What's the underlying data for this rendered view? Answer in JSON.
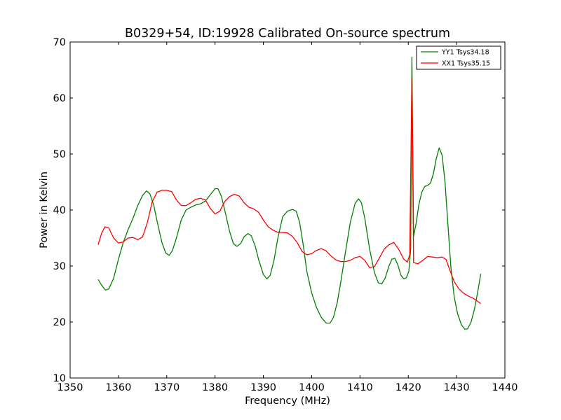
{
  "chart_data": {
    "type": "line",
    "title": "B0329+54, ID:19928 Calibrated On-source spectrum",
    "xlabel": "Frequency (MHz)",
    "ylabel": "Power in Kelvin",
    "xlim": [
      1350,
      1440
    ],
    "ylim": [
      10,
      70
    ],
    "xticks": [
      1350,
      1360,
      1370,
      1380,
      1390,
      1400,
      1410,
      1420,
      1430,
      1440
    ],
    "yticks": [
      10,
      20,
      30,
      40,
      50,
      60,
      70
    ],
    "grid": false,
    "legend_position": "top-right",
    "series": [
      {
        "name": "YY1 Tsys34.18",
        "color": "#008000",
        "points": [
          [
            1355.8,
            27.6
          ],
          [
            1356.5,
            26.6
          ],
          [
            1357.3,
            25.7
          ],
          [
            1358.0,
            25.9
          ],
          [
            1359.0,
            27.8
          ],
          [
            1360.0,
            31.2
          ],
          [
            1361.0,
            34.2
          ],
          [
            1362.0,
            36.5
          ],
          [
            1363.0,
            38.5
          ],
          [
            1364.0,
            40.8
          ],
          [
            1365.0,
            42.6
          ],
          [
            1365.8,
            43.4
          ],
          [
            1366.5,
            42.9
          ],
          [
            1367.3,
            40.9
          ],
          [
            1368.0,
            38.0
          ],
          [
            1369.0,
            34.2
          ],
          [
            1369.8,
            32.3
          ],
          [
            1370.5,
            31.9
          ],
          [
            1371.2,
            32.8
          ],
          [
            1372.0,
            35.0
          ],
          [
            1373.0,
            38.2
          ],
          [
            1374.0,
            40.0
          ],
          [
            1375.0,
            40.5
          ],
          [
            1376.0,
            40.9
          ],
          [
            1377.0,
            41.1
          ],
          [
            1378.0,
            41.6
          ],
          [
            1379.0,
            42.7
          ],
          [
            1380.0,
            43.8
          ],
          [
            1380.6,
            43.8
          ],
          [
            1381.3,
            42.5
          ],
          [
            1382.0,
            40.0
          ],
          [
            1383.0,
            36.2
          ],
          [
            1383.8,
            34.0
          ],
          [
            1384.5,
            33.5
          ],
          [
            1385.3,
            34.0
          ],
          [
            1386.0,
            35.2
          ],
          [
            1386.8,
            35.8
          ],
          [
            1387.5,
            35.4
          ],
          [
            1388.3,
            33.6
          ],
          [
            1389.0,
            31.2
          ],
          [
            1390.0,
            28.5
          ],
          [
            1390.7,
            27.7
          ],
          [
            1391.4,
            28.3
          ],
          [
            1392.2,
            31.0
          ],
          [
            1393.0,
            35.0
          ],
          [
            1394.0,
            38.8
          ],
          [
            1395.0,
            39.8
          ],
          [
            1396.0,
            40.1
          ],
          [
            1396.8,
            39.8
          ],
          [
            1397.5,
            37.8
          ],
          [
            1398.3,
            33.5
          ],
          [
            1399.0,
            29.0
          ],
          [
            1400.0,
            25.2
          ],
          [
            1401.0,
            22.6
          ],
          [
            1402.0,
            20.8
          ],
          [
            1403.0,
            19.8
          ],
          [
            1403.8,
            19.8
          ],
          [
            1404.5,
            20.8
          ],
          [
            1405.3,
            23.5
          ],
          [
            1406.0,
            27.0
          ],
          [
            1407.0,
            32.5
          ],
          [
            1408.0,
            37.8
          ],
          [
            1409.0,
            41.2
          ],
          [
            1409.7,
            42.0
          ],
          [
            1410.3,
            41.3
          ],
          [
            1411.0,
            38.5
          ],
          [
            1412.0,
            33.0
          ],
          [
            1413.0,
            28.8
          ],
          [
            1413.8,
            27.0
          ],
          [
            1414.5,
            26.8
          ],
          [
            1415.2,
            27.8
          ],
          [
            1416.0,
            30.0
          ],
          [
            1416.6,
            31.2
          ],
          [
            1417.2,
            31.4
          ],
          [
            1417.8,
            30.3
          ],
          [
            1418.5,
            28.3
          ],
          [
            1419.1,
            27.7
          ],
          [
            1419.6,
            27.9
          ],
          [
            1420.1,
            29.0
          ],
          [
            1420.5,
            33.0
          ],
          [
            1420.75,
            67.3
          ],
          [
            1421.1,
            35.3
          ],
          [
            1421.6,
            37.5
          ],
          [
            1422.2,
            41.0
          ],
          [
            1422.8,
            43.2
          ],
          [
            1423.4,
            44.2
          ],
          [
            1424.0,
            44.4
          ],
          [
            1424.6,
            44.8
          ],
          [
            1425.2,
            46.5
          ],
          [
            1425.8,
            49.2
          ],
          [
            1426.4,
            51.1
          ],
          [
            1427.0,
            49.8
          ],
          [
            1427.6,
            45.0
          ],
          [
            1428.2,
            37.5
          ],
          [
            1428.8,
            30.0
          ],
          [
            1429.5,
            24.5
          ],
          [
            1430.2,
            21.5
          ],
          [
            1431.0,
            19.5
          ],
          [
            1431.7,
            18.7
          ],
          [
            1432.3,
            18.8
          ],
          [
            1433.0,
            20.0
          ],
          [
            1433.7,
            22.3
          ],
          [
            1434.4,
            25.5
          ],
          [
            1435.0,
            28.6
          ]
        ]
      },
      {
        "name": "XX1 Tsys35.15",
        "color": "#ff0000",
        "points": [
          [
            1355.8,
            33.8
          ],
          [
            1356.5,
            35.8
          ],
          [
            1357.2,
            37.0
          ],
          [
            1358.0,
            36.8
          ],
          [
            1359.0,
            35.0
          ],
          [
            1360.0,
            34.1
          ],
          [
            1361.0,
            34.3
          ],
          [
            1362.0,
            35.0
          ],
          [
            1363.0,
            35.1
          ],
          [
            1364.0,
            34.7
          ],
          [
            1365.0,
            35.2
          ],
          [
            1366.0,
            37.8
          ],
          [
            1367.0,
            41.5
          ],
          [
            1368.0,
            43.2
          ],
          [
            1369.0,
            43.5
          ],
          [
            1370.0,
            43.5
          ],
          [
            1371.0,
            43.3
          ],
          [
            1372.0,
            41.8
          ],
          [
            1373.0,
            40.8
          ],
          [
            1374.0,
            40.8
          ],
          [
            1375.0,
            41.3
          ],
          [
            1376.0,
            41.9
          ],
          [
            1377.0,
            42.1
          ],
          [
            1378.0,
            41.8
          ],
          [
            1379.0,
            40.3
          ],
          [
            1380.0,
            39.3
          ],
          [
            1381.0,
            39.8
          ],
          [
            1382.0,
            41.5
          ],
          [
            1383.0,
            42.4
          ],
          [
            1384.0,
            42.8
          ],
          [
            1385.0,
            42.5
          ],
          [
            1386.0,
            41.3
          ],
          [
            1387.0,
            40.5
          ],
          [
            1388.0,
            40.2
          ],
          [
            1389.0,
            39.6
          ],
          [
            1390.0,
            38.2
          ],
          [
            1391.0,
            37.0
          ],
          [
            1392.0,
            36.4
          ],
          [
            1393.0,
            36.0
          ],
          [
            1394.0,
            36.0
          ],
          [
            1395.0,
            35.9
          ],
          [
            1396.0,
            35.3
          ],
          [
            1397.0,
            34.2
          ],
          [
            1398.0,
            32.6
          ],
          [
            1399.0,
            32.0
          ],
          [
            1400.0,
            32.2
          ],
          [
            1401.0,
            32.8
          ],
          [
            1402.0,
            33.1
          ],
          [
            1403.0,
            32.7
          ],
          [
            1404.0,
            31.8
          ],
          [
            1405.0,
            31.1
          ],
          [
            1406.0,
            30.8
          ],
          [
            1407.0,
            30.8
          ],
          [
            1408.0,
            31.0
          ],
          [
            1409.0,
            31.5
          ],
          [
            1410.0,
            31.7
          ],
          [
            1411.0,
            31.0
          ],
          [
            1412.0,
            29.7
          ],
          [
            1413.0,
            29.9
          ],
          [
            1414.0,
            31.4
          ],
          [
            1415.0,
            33.0
          ],
          [
            1416.0,
            33.8
          ],
          [
            1417.0,
            34.2
          ],
          [
            1418.0,
            33.0
          ],
          [
            1419.0,
            31.3
          ],
          [
            1419.8,
            30.7
          ],
          [
            1420.3,
            32.0
          ],
          [
            1420.75,
            63.8
          ],
          [
            1421.1,
            30.6
          ],
          [
            1422.0,
            30.4
          ],
          [
            1423.0,
            31.0
          ],
          [
            1424.0,
            31.7
          ],
          [
            1425.0,
            31.6
          ],
          [
            1426.0,
            31.5
          ],
          [
            1427.0,
            31.6
          ],
          [
            1427.8,
            31.2
          ],
          [
            1428.5,
            29.5
          ],
          [
            1429.5,
            27.2
          ],
          [
            1430.5,
            25.9
          ],
          [
            1431.5,
            25.1
          ],
          [
            1432.5,
            24.6
          ],
          [
            1433.5,
            24.2
          ],
          [
            1434.5,
            23.6
          ],
          [
            1435.0,
            23.3
          ]
        ]
      }
    ]
  }
}
